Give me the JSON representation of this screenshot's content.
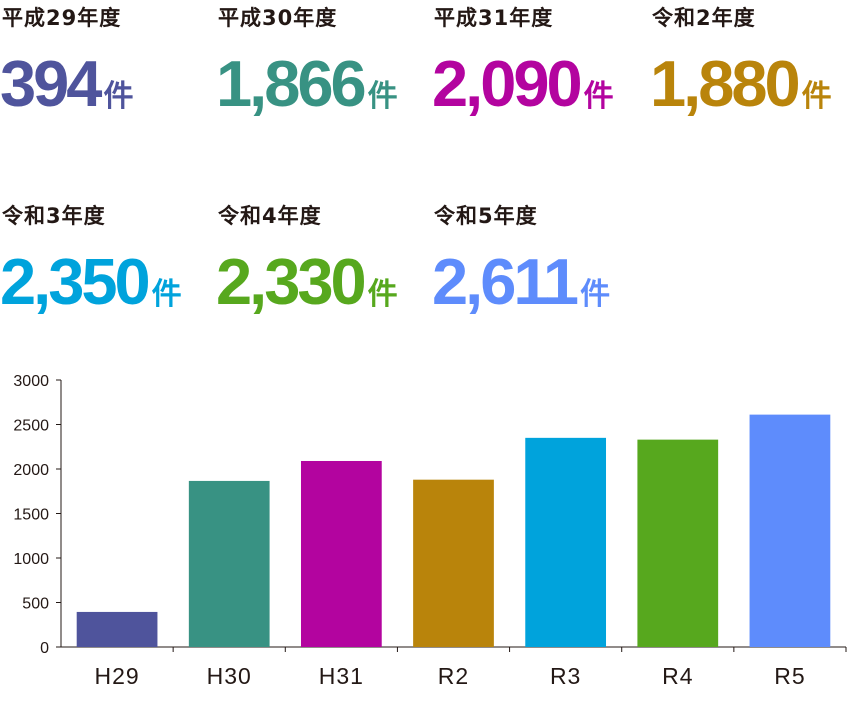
{
  "stats": [
    {
      "label": "平成29年度",
      "value": "394",
      "unit": "件",
      "color": "#4f549c"
    },
    {
      "label": "平成30年度",
      "value": "1,866",
      "unit": "件",
      "color": "#389283"
    },
    {
      "label": "平成31年度",
      "value": "2,090",
      "unit": "件",
      "color": "#b3049f"
    },
    {
      "label": "令和2年度",
      "value": "1,880",
      "unit": "件",
      "color": "#b9840b"
    },
    {
      "label": "令和3年度",
      "value": "2,350",
      "unit": "件",
      "color": "#00a3dc"
    },
    {
      "label": "令和4年度",
      "value": "2,330",
      "unit": "件",
      "color": "#57a81e"
    },
    {
      "label": "令和5年度",
      "value": "2,611",
      "unit": "件",
      "color": "#5e8cfc"
    }
  ],
  "chart_data": {
    "type": "bar",
    "categories": [
      "H29",
      "H30",
      "H31",
      "R2",
      "R3",
      "R4",
      "R5"
    ],
    "values": [
      394,
      1866,
      2090,
      1880,
      2350,
      2330,
      2611
    ],
    "colors": [
      "#4f549c",
      "#389283",
      "#b3049f",
      "#b9840b",
      "#00a3dc",
      "#57a81e",
      "#5e8cfc"
    ],
    "ylim": [
      0,
      3000
    ],
    "yticks": [
      0,
      500,
      1000,
      1500,
      2000,
      2500,
      3000
    ],
    "grid": false,
    "legend": "none"
  }
}
